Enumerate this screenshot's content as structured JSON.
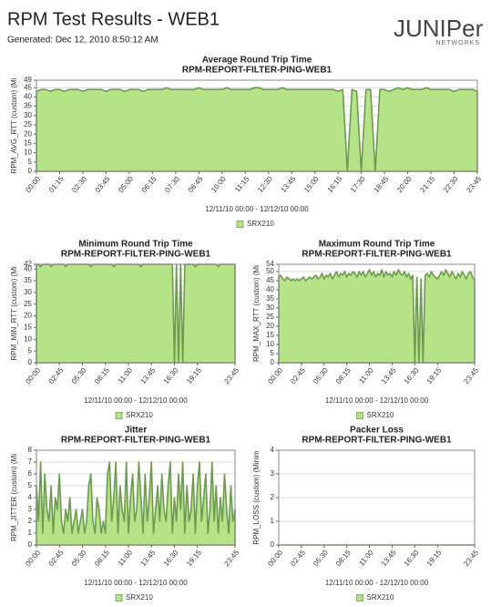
{
  "header": {
    "title": "RPM Test Results - WEB1",
    "generated": "Generated: Dec 12, 2010 8:50:12 AM",
    "logo": "JUNIPer",
    "logo_sub": "NETWORKS"
  },
  "chart_data": [
    {
      "type": "area",
      "title": "Average Round Trip Time",
      "subtitle": "RPM-REPORT-FILTER-PING-WEB1",
      "ylabel": "RPM_AVG_RTT (custom) (Mi",
      "xlabel": "12/11/10 00:00  -  12/12/10 00:00",
      "grid": true,
      "ylim": [
        0,
        49
      ],
      "yticks": [
        0,
        5,
        10,
        15,
        20,
        25,
        30,
        35,
        40,
        45,
        49
      ],
      "categories": [
        "00:00",
        null,
        null,
        null,
        null,
        "01:15",
        null,
        null,
        null,
        null,
        "02:30",
        null,
        null,
        null,
        null,
        "03:45",
        null,
        null,
        null,
        null,
        "05:00",
        null,
        null,
        null,
        null,
        "06:15",
        null,
        null,
        null,
        null,
        "07:30",
        null,
        null,
        null,
        null,
        "08:45",
        null,
        null,
        null,
        null,
        "10:00",
        null,
        null,
        null,
        null,
        "11:15",
        null,
        null,
        null,
        null,
        "12:30",
        null,
        null,
        null,
        null,
        "13:45",
        null,
        null,
        null,
        null,
        "15:00",
        null,
        null,
        null,
        null,
        "16:15",
        null,
        null,
        null,
        null,
        "17:30",
        null,
        null,
        null,
        null,
        "18:45",
        null,
        null,
        null,
        null,
        "20:00",
        null,
        null,
        null,
        null,
        "21:15",
        null,
        null,
        null,
        null,
        "22:30",
        null,
        null,
        null,
        null,
        "23:45"
      ],
      "series": [
        {
          "name": "SRX210",
          "color": "#b6e388",
          "values": [
            43,
            44,
            44,
            43,
            44,
            44,
            43,
            44,
            44,
            44,
            43,
            44,
            44,
            44,
            44,
            43,
            44,
            44,
            44,
            43,
            44,
            44,
            44,
            43,
            44,
            44,
            44,
            44,
            45,
            44,
            44,
            44,
            44,
            44,
            44,
            45,
            44,
            44,
            44,
            44,
            44,
            45,
            44,
            44,
            44,
            44,
            44,
            45,
            45,
            44,
            44,
            44,
            44,
            45,
            44,
            44,
            44,
            44,
            44,
            44,
            44,
            44,
            44,
            44,
            44,
            43,
            44,
            0,
            44,
            43,
            0,
            44,
            44,
            0,
            44,
            44,
            43,
            44,
            45,
            44,
            45,
            44,
            44,
            44,
            45,
            44,
            44,
            44,
            44,
            44,
            43,
            44,
            44,
            44,
            44,
            43
          ]
        }
      ]
    },
    {
      "type": "area",
      "title": "Minimum Round Trip Time",
      "subtitle": "RPM-REPORT-FILTER-PING-WEB1",
      "ylabel": "RPM_MIN_RTT (custom) (Mi",
      "xlabel": "12/11/10 00:00  -  12/12/10 00:00",
      "grid": true,
      "ylim": [
        0,
        42
      ],
      "yticks": [
        0,
        5,
        10,
        15,
        20,
        25,
        30,
        35,
        40,
        42
      ],
      "categories": [
        "00:00",
        null,
        null,
        null,
        null,
        null,
        null,
        null,
        null,
        null,
        null,
        "02:45",
        null,
        null,
        null,
        null,
        null,
        null,
        null,
        null,
        null,
        null,
        "05:30",
        null,
        null,
        null,
        null,
        null,
        null,
        null,
        null,
        null,
        null,
        "08:15",
        null,
        null,
        null,
        null,
        null,
        null,
        null,
        null,
        null,
        null,
        "11:00",
        null,
        null,
        null,
        null,
        null,
        null,
        null,
        null,
        null,
        null,
        "13:45",
        null,
        null,
        null,
        null,
        null,
        null,
        null,
        null,
        null,
        null,
        "16:30",
        null,
        null,
        null,
        null,
        null,
        null,
        null,
        null,
        null,
        null,
        "19:15",
        null,
        null,
        null,
        null,
        null,
        null,
        null,
        null,
        null,
        null,
        null,
        null,
        null,
        null,
        null,
        null,
        null,
        "23:45"
      ],
      "series": [
        {
          "name": "SRX210",
          "color": "#b6e388",
          "values": [
            42,
            42,
            41,
            42,
            42,
            42,
            42,
            41,
            42,
            42,
            42,
            42,
            42,
            42,
            41,
            42,
            42,
            42,
            42,
            42,
            42,
            42,
            42,
            42,
            42,
            42,
            41,
            42,
            42,
            42,
            42,
            42,
            42,
            42,
            42,
            42,
            42,
            41,
            42,
            42,
            42,
            42,
            42,
            42,
            42,
            42,
            42,
            42,
            42,
            42,
            41,
            42,
            42,
            42,
            42,
            42,
            42,
            42,
            42,
            42,
            42,
            42,
            42,
            42,
            42,
            42,
            0,
            42,
            0,
            42,
            0,
            42,
            42,
            42,
            42,
            42,
            41,
            42,
            42,
            42,
            42,
            42,
            42,
            42,
            42,
            42,
            42,
            41,
            42,
            42,
            42,
            42,
            42,
            42,
            42,
            42
          ]
        }
      ]
    },
    {
      "type": "area",
      "title": "Maximum Round Trip Time",
      "subtitle": "RPM-REPORT-FILTER-PING-WEB1",
      "ylabel": "RPM_MAX_RTT (custom) (Mi",
      "xlabel": "12/11/10 00:00  -  12/12/10 00:00",
      "grid": true,
      "ylim": [
        0,
        54
      ],
      "yticks": [
        0,
        5,
        10,
        15,
        20,
        25,
        30,
        35,
        40,
        45,
        50,
        54
      ],
      "categories": [
        "00:00",
        null,
        null,
        null,
        null,
        null,
        null,
        null,
        null,
        null,
        null,
        "02:45",
        null,
        null,
        null,
        null,
        null,
        null,
        null,
        null,
        null,
        null,
        "05:30",
        null,
        null,
        null,
        null,
        null,
        null,
        null,
        null,
        null,
        null,
        "08:15",
        null,
        null,
        null,
        null,
        null,
        null,
        null,
        null,
        null,
        null,
        "11:00",
        null,
        null,
        null,
        null,
        null,
        null,
        null,
        null,
        null,
        null,
        "13:45",
        null,
        null,
        null,
        null,
        null,
        null,
        null,
        null,
        null,
        null,
        "16:30",
        null,
        null,
        null,
        null,
        null,
        null,
        null,
        null,
        null,
        null,
        "19:15",
        null,
        null,
        null,
        null,
        null,
        null,
        null,
        null,
        null,
        null,
        null,
        null,
        null,
        null,
        null,
        null,
        null,
        "23:45"
      ],
      "series": [
        {
          "name": "SRX210",
          "color": "#b6e388",
          "values": [
            47,
            48,
            46,
            45,
            47,
            46,
            45,
            46,
            45,
            46,
            45,
            46,
            47,
            45,
            46,
            47,
            46,
            47,
            48,
            46,
            47,
            49,
            46,
            48,
            47,
            49,
            46,
            48,
            50,
            47,
            49,
            48,
            50,
            47,
            49,
            48,
            50,
            49,
            47,
            50,
            48,
            50,
            47,
            49,
            51,
            48,
            50,
            47,
            49,
            48,
            51,
            47,
            50,
            48,
            49,
            47,
            50,
            48,
            51,
            49,
            48,
            50,
            47,
            49,
            46,
            48,
            0,
            47,
            0,
            46,
            0,
            48,
            49,
            47,
            50,
            48,
            47,
            46,
            48,
            50,
            48,
            51,
            49,
            47,
            50,
            48,
            46,
            49,
            47,
            50,
            48,
            46,
            49,
            50,
            47,
            45
          ]
        }
      ]
    },
    {
      "type": "area",
      "title": "Jitter",
      "subtitle": "RPM-REPORT-FILTER-PING-WEB1",
      "ylabel": "RPM_JITTER (custom) (Mi",
      "xlabel": "12/11/10 00:00  -  12/12/10 00:00",
      "grid": true,
      "ylim": [
        0,
        8
      ],
      "yticks": [
        0,
        1,
        2,
        3,
        4,
        5,
        6,
        7,
        8
      ],
      "categories": [
        "00:00",
        null,
        null,
        null,
        null,
        null,
        null,
        null,
        null,
        null,
        null,
        "02:45",
        null,
        null,
        null,
        null,
        null,
        null,
        null,
        null,
        null,
        null,
        "05:30",
        null,
        null,
        null,
        null,
        null,
        null,
        null,
        null,
        null,
        null,
        "08:15",
        null,
        null,
        null,
        null,
        null,
        null,
        null,
        null,
        null,
        null,
        "11:00",
        null,
        null,
        null,
        null,
        null,
        null,
        null,
        null,
        null,
        null,
        "13:45",
        null,
        null,
        null,
        null,
        null,
        null,
        null,
        null,
        null,
        null,
        "16:30",
        null,
        null,
        null,
        null,
        null,
        null,
        null,
        null,
        null,
        null,
        "19:15",
        null,
        null,
        null,
        null,
        null,
        null,
        null,
        null,
        null,
        null,
        null,
        null,
        null,
        null,
        null,
        null,
        null,
        "23:45"
      ],
      "series": [
        {
          "name": "SRX210",
          "color": "#b6e388",
          "values": [
            5,
            2,
            7,
            1,
            6,
            3,
            2,
            5,
            1,
            4,
            3,
            6,
            2,
            1,
            3,
            2,
            4,
            1,
            2,
            3,
            1,
            2,
            3,
            1,
            2,
            5,
            6,
            2,
            1,
            4,
            3,
            1,
            2,
            1,
            6,
            7,
            2,
            4,
            7,
            1,
            5,
            3,
            2,
            7,
            1,
            4,
            6,
            2,
            3,
            7,
            4,
            1,
            6,
            2,
            4,
            7,
            1,
            3,
            5,
            2,
            6,
            3,
            2,
            5,
            7,
            1,
            4,
            2,
            6,
            3,
            7,
            1,
            5,
            2,
            3,
            6,
            1,
            5,
            7,
            2,
            4,
            6,
            1,
            3,
            7,
            2,
            5,
            1,
            4,
            2,
            6,
            3,
            1,
            5,
            2,
            3
          ]
        }
      ]
    },
    {
      "type": "area",
      "title": "Packer Loss",
      "subtitle": "RPM-REPORT-FILTER-PING-WEB1",
      "ylabel": "RPM_LOSS (custom) (Minim",
      "xlabel": "12/11/10 00:00  -  12/12/10 00:00",
      "grid": true,
      "ylim": [
        0,
        4
      ],
      "yticks": [
        0,
        1,
        2,
        3,
        4
      ],
      "categories": [
        "00:00",
        null,
        null,
        null,
        null,
        null,
        null,
        null,
        null,
        null,
        null,
        "02:45",
        null,
        null,
        null,
        null,
        null,
        null,
        null,
        null,
        null,
        null,
        "05:30",
        null,
        null,
        null,
        null,
        null,
        null,
        null,
        null,
        null,
        null,
        "08:15",
        null,
        null,
        null,
        null,
        null,
        null,
        null,
        null,
        null,
        null,
        "11:00",
        null,
        null,
        null,
        null,
        null,
        null,
        null,
        null,
        null,
        null,
        "13:45",
        null,
        null,
        null,
        null,
        null,
        null,
        null,
        null,
        null,
        null,
        "16:30",
        null,
        null,
        null,
        null,
        null,
        null,
        null,
        null,
        null,
        null,
        "19:15",
        null,
        null,
        null,
        null,
        null,
        null,
        null,
        null,
        null,
        null,
        null,
        null,
        null,
        null,
        null,
        null,
        null,
        "23:45"
      ],
      "series": [
        {
          "name": "SRX210",
          "color": "#b6e388",
          "values": [
            0,
            0,
            0,
            0,
            0,
            0,
            0,
            0,
            0,
            0,
            0,
            0,
            0,
            0,
            0,
            0,
            0,
            0,
            0,
            0,
            0,
            0,
            0,
            0,
            0,
            0,
            0,
            0,
            0,
            0,
            0,
            0,
            0,
            0,
            0,
            0,
            0,
            0,
            0,
            0,
            0,
            0,
            0,
            0,
            0,
            0,
            0,
            0,
            0,
            0,
            0,
            0,
            0,
            0,
            0,
            0,
            0,
            0,
            0,
            0,
            0,
            0,
            0,
            0,
            0,
            0,
            0,
            0,
            0,
            0,
            0,
            0,
            0,
            0,
            0,
            0,
            0,
            0,
            0,
            0,
            0,
            0,
            0,
            0,
            0,
            0,
            0,
            0,
            0,
            0,
            0,
            0,
            0,
            0,
            0,
            0
          ]
        }
      ]
    }
  ]
}
